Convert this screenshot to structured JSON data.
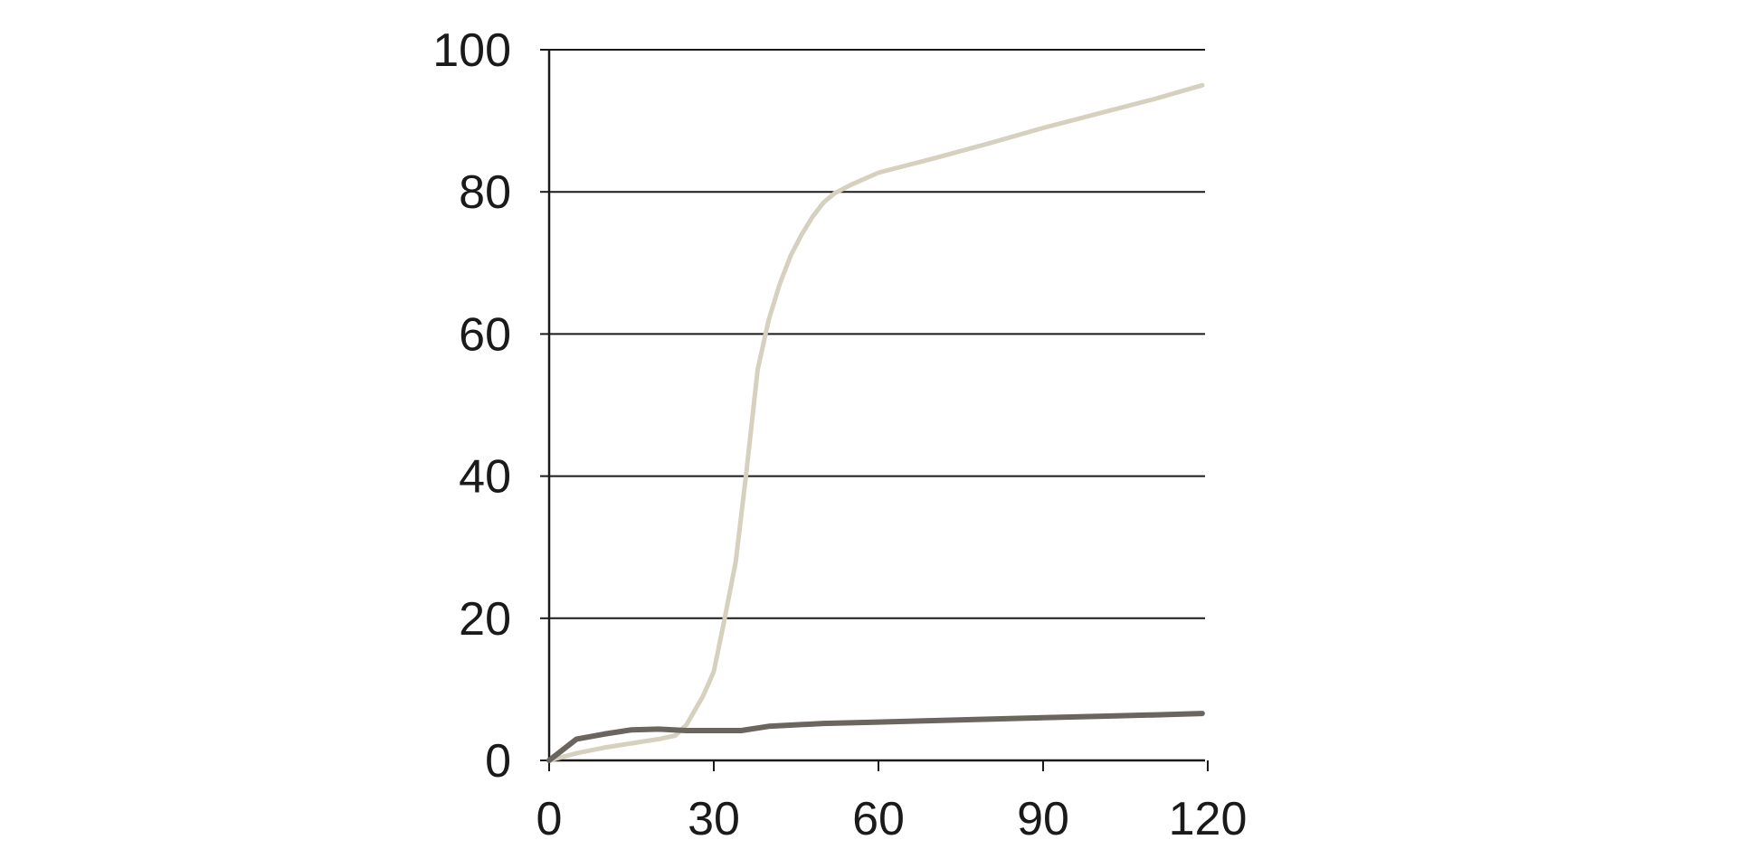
{
  "chart_data": {
    "type": "line",
    "title": "",
    "xlabel": "",
    "ylabel": "",
    "xlim": [
      0,
      120
    ],
    "ylim": [
      0,
      100
    ],
    "x_ticks": [
      0,
      30,
      60,
      90,
      120
    ],
    "y_ticks": [
      0,
      20,
      40,
      60,
      80,
      100
    ],
    "grid": "horizontal",
    "legend": "none",
    "series": [
      {
        "color": "#d6d0bf",
        "x": [
          0,
          5,
          10,
          15,
          20,
          23,
          25,
          28,
          30,
          32,
          34,
          36,
          38,
          40,
          42,
          44,
          46,
          48,
          50,
          52,
          55,
          60,
          70,
          80,
          90,
          100,
          110,
          119
        ],
        "y": [
          0,
          1,
          1.8,
          2.4,
          3,
          3.5,
          5,
          9,
          12.5,
          20,
          28,
          41,
          55,
          62,
          67,
          71,
          74,
          76.5,
          78.5,
          79.8,
          81,
          82.7,
          84.7,
          86.8,
          89,
          91,
          93,
          95
        ]
      },
      {
        "color": "#6b6560",
        "x": [
          0,
          5,
          10,
          15,
          20,
          25,
          30,
          35,
          40,
          50,
          60,
          70,
          80,
          90,
          100,
          110,
          119
        ],
        "y": [
          0,
          3,
          3.7,
          4.3,
          4.4,
          4.2,
          4.2,
          4.2,
          4.8,
          5.2,
          5.4,
          5.6,
          5.8,
          6,
          6.2,
          6.4,
          6.6
        ]
      }
    ]
  }
}
